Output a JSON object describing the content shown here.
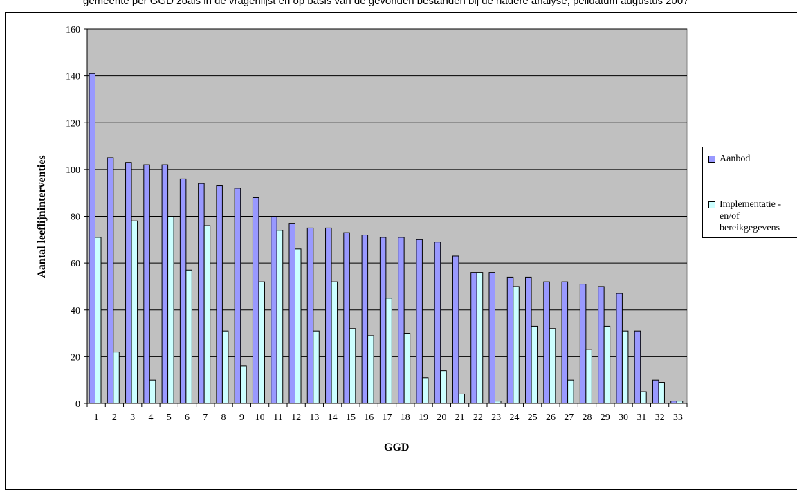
{
  "title_fragment": "gemeente per GGD zoals in de vragenlijst en op basis van de gevonden bestanden bij de nadere analyse, peildatum augustus 2007",
  "chart_data": {
    "type": "bar",
    "xlabel": "GGD",
    "ylabel": "Aantal leeflijninterventies",
    "ylim": [
      0,
      160
    ],
    "yticks": [
      0,
      20,
      40,
      60,
      80,
      100,
      120,
      140,
      160
    ],
    "grid": true,
    "legend_position": "right",
    "categories": [
      "1",
      "2",
      "3",
      "4",
      "5",
      "6",
      "7",
      "8",
      "9",
      "10",
      "11",
      "12",
      "13",
      "14",
      "15",
      "16",
      "17",
      "18",
      "19",
      "20",
      "21",
      "22",
      "23",
      "24",
      "25",
      "26",
      "27",
      "28",
      "29",
      "30",
      "31",
      "32",
      "33"
    ],
    "series": [
      {
        "name": "Aanbod",
        "color": "#9999ff",
        "values": [
          141,
          105,
          103,
          102,
          102,
          96,
          94,
          93,
          92,
          88,
          80,
          77,
          75,
          75,
          73,
          72,
          71,
          71,
          70,
          69,
          63,
          56,
          56,
          54,
          54,
          52,
          52,
          51,
          50,
          47,
          31,
          10,
          1
        ]
      },
      {
        "name": "Implementatie -en/of bereikgegevens",
        "color": "#ccffff",
        "values": [
          71,
          22,
          78,
          10,
          80,
          57,
          76,
          31,
          16,
          52,
          74,
          66,
          31,
          52,
          32,
          29,
          45,
          30,
          11,
          14,
          4,
          56,
          1,
          50,
          33,
          32,
          10,
          23,
          33,
          31,
          5,
          9,
          1
        ]
      }
    ],
    "plot_background": "#c0c0c0"
  }
}
